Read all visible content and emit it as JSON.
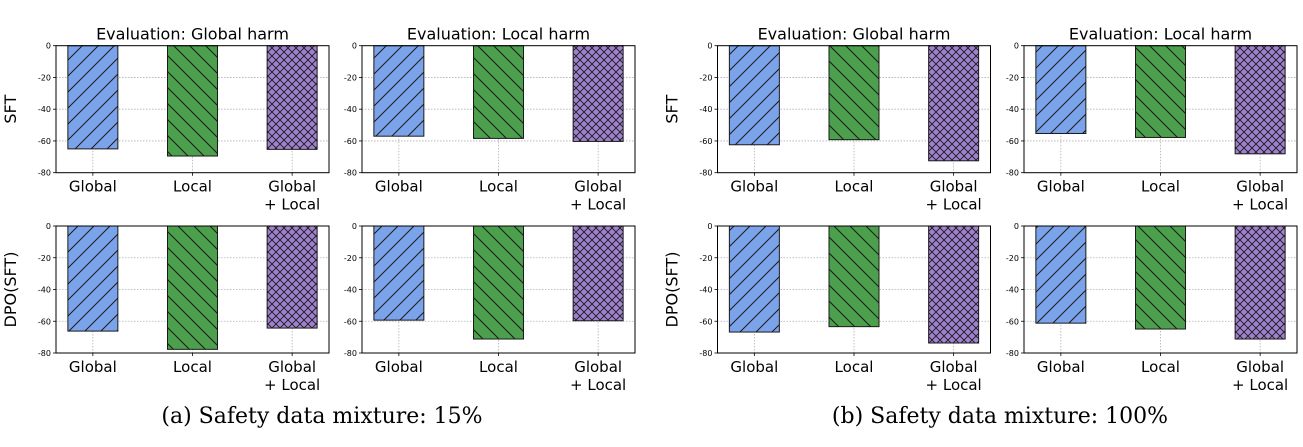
{
  "colors": {
    "Global": "#7ba3ea",
    "Local": "#4c9f4c",
    "Global + Local": "#a081cf",
    "edge": "#1a1a1a",
    "grid": "#b0b0b0"
  },
  "captions": [
    "(a) Safety data mixture: 15%",
    "(b) Safety data mixture: 100%"
  ],
  "chart_data": [
    {
      "type": "bar",
      "panel": 0,
      "row": 0,
      "col": 0,
      "title": "Evaluation: Global harm",
      "ylabel": "SFT",
      "category_labels": [
        [
          "Global"
        ],
        [
          "Local"
        ],
        [
          "Global",
          "+ Local"
        ]
      ],
      "categories": [
        "Global",
        "Local",
        "Global + Local"
      ],
      "values": [
        -65,
        -69.5,
        -65.3
      ],
      "ylim": [
        -80,
        0
      ],
      "yticks": [
        "0",
        "-20",
        "-40",
        "-60",
        "-80"
      ],
      "grid": true
    },
    {
      "type": "bar",
      "panel": 0,
      "row": 0,
      "col": 1,
      "title": "Evaluation: Local harm",
      "category_labels": [
        [
          "Global"
        ],
        [
          "Local"
        ],
        [
          "Global",
          "+ Local"
        ]
      ],
      "categories": [
        "Global",
        "Local",
        "Global + Local"
      ],
      "values": [
        -57,
        -58.4,
        -60.3
      ],
      "ylim": [
        -80,
        0
      ],
      "yticks": [
        "0",
        "-20",
        "-40",
        "-60",
        "-80"
      ],
      "grid": true
    },
    {
      "type": "bar",
      "panel": 0,
      "row": 1,
      "col": 0,
      "ylabel": "DPO(SFT)",
      "category_labels": [
        [
          "Global"
        ],
        [
          "Local"
        ],
        [
          "Global",
          "+ Local"
        ]
      ],
      "categories": [
        "Global",
        "Local",
        "Global + Local"
      ],
      "values": [
        -66.2,
        -77.7,
        -64.3
      ],
      "ylim": [
        -80,
        0
      ],
      "yticks": [
        "0",
        "-20",
        "-40",
        "-60",
        "-80"
      ],
      "grid": true
    },
    {
      "type": "bar",
      "panel": 0,
      "row": 1,
      "col": 1,
      "category_labels": [
        [
          "Global"
        ],
        [
          "Local"
        ],
        [
          "Global",
          "+ Local"
        ]
      ],
      "categories": [
        "Global",
        "Local",
        "Global + Local"
      ],
      "values": [
        -59.3,
        -71.2,
        -59.7
      ],
      "ylim": [
        -80,
        0
      ],
      "yticks": [
        "0",
        "-20",
        "-40",
        "-60",
        "-80"
      ],
      "grid": true
    },
    {
      "type": "bar",
      "panel": 1,
      "row": 0,
      "col": 0,
      "title": "Evaluation: Global harm",
      "ylabel": "SFT",
      "category_labels": [
        [
          "Global"
        ],
        [
          "Local"
        ],
        [
          "Global",
          "+ Local"
        ]
      ],
      "categories": [
        "Global",
        "Local",
        "Global + Local"
      ],
      "values": [
        -62.4,
        -59.2,
        -72.5
      ],
      "ylim": [
        -80,
        0
      ],
      "yticks": [
        "0",
        "-20",
        "-40",
        "-60",
        "-80"
      ],
      "grid": true
    },
    {
      "type": "bar",
      "panel": 1,
      "row": 0,
      "col": 1,
      "title": "Evaluation: Local harm",
      "category_labels": [
        [
          "Global"
        ],
        [
          "Local"
        ],
        [
          "Global",
          "+ Local"
        ]
      ],
      "categories": [
        "Global",
        "Local",
        "Global + Local"
      ],
      "values": [
        -55.3,
        -57.8,
        -68.1
      ],
      "ylim": [
        -80,
        0
      ],
      "yticks": [
        "0",
        "-20",
        "-40",
        "-60",
        "-80"
      ],
      "grid": true
    },
    {
      "type": "bar",
      "panel": 1,
      "row": 1,
      "col": 0,
      "ylabel": "DPO(SFT)",
      "category_labels": [
        [
          "Global"
        ],
        [
          "Local"
        ],
        [
          "Global",
          "+ Local"
        ]
      ],
      "categories": [
        "Global",
        "Local",
        "Global + Local"
      ],
      "values": [
        -66.8,
        -63.4,
        -73.7
      ],
      "ylim": [
        -80,
        0
      ],
      "yticks": [
        "0",
        "-20",
        "-40",
        "-60",
        "-80"
      ],
      "grid": true
    },
    {
      "type": "bar",
      "panel": 1,
      "row": 1,
      "col": 1,
      "category_labels": [
        [
          "Global"
        ],
        [
          "Local"
        ],
        [
          "Global",
          "+ Local"
        ]
      ],
      "categories": [
        "Global",
        "Local",
        "Global + Local"
      ],
      "values": [
        -61.2,
        -64.9,
        -71.2
      ],
      "ylim": [
        -80,
        0
      ],
      "yticks": [
        "0",
        "-20",
        "-40",
        "-60",
        "-80"
      ],
      "grid": true
    }
  ]
}
